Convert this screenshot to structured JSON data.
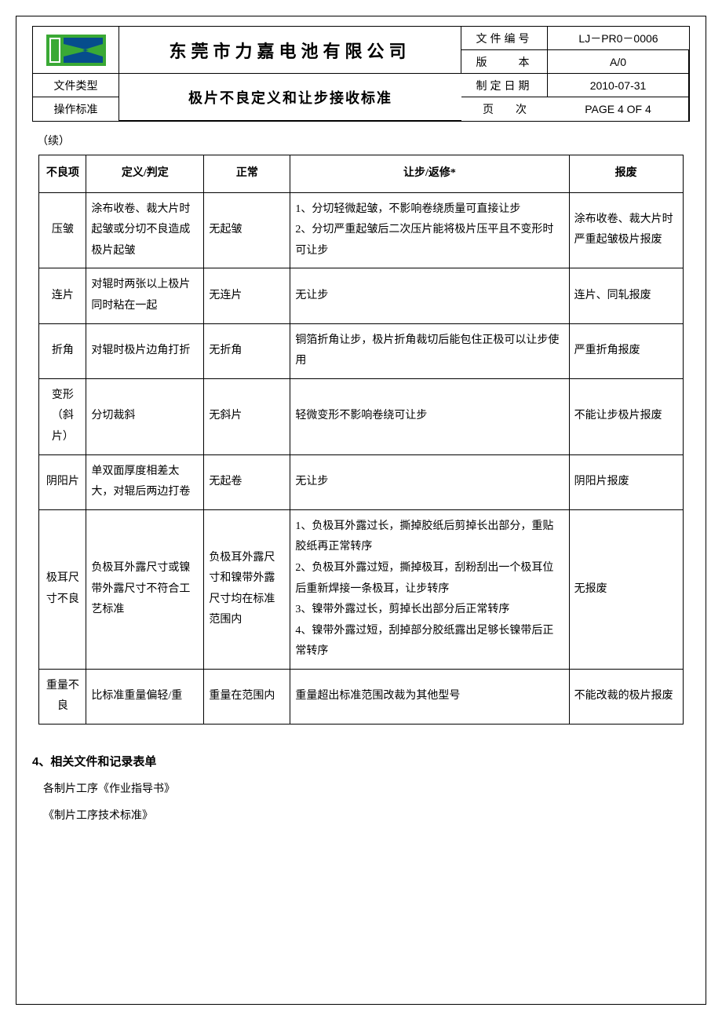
{
  "header": {
    "company": "东莞市力嘉电池有限公司",
    "subtitle": "极片不良定义和让步接收标准",
    "fileTypeLabel": "文件类型",
    "opStdLabel": "操作标准",
    "docNoLabel": "文件编号",
    "docNo": "LJ－PR0－0006",
    "versionLabel": "版　　本",
    "version": "A/0",
    "dateLabel": "制定日期",
    "date": "2010-07-31",
    "pageLabel": "页　　次",
    "page": "PAGE 4 OF 4"
  },
  "continued": "（续）",
  "table": {
    "headers": {
      "item": "不良项",
      "def": "定义/判定",
      "normal": "正常",
      "concession": "让步/返修*",
      "scrap": "报废"
    },
    "rows": [
      {
        "item": "压皱",
        "def": "涂布收卷、裁大片时起皱或分切不良造成极片起皱",
        "normal": "无起皱",
        "concession": "1、分切轻微起皱，不影响卷绕质量可直接让步\n2、分切严重起皱后二次压片能将极片压平且不变形时可让步",
        "scrap": "涂布收卷、裁大片时严重起皱极片报废"
      },
      {
        "item": "连片",
        "def": "对辊时两张以上极片同时粘在一起",
        "normal": "无连片",
        "concession": "无让步",
        "scrap": "连片、同轧报废"
      },
      {
        "item": "折角",
        "def": "对辊时极片边角打折",
        "normal": "无折角",
        "concession": "铜箔折角让步，极片折角裁切后能包住正极可以让步使用",
        "scrap": "严重折角报废"
      },
      {
        "item": "变形\n（斜片）",
        "def": "分切裁斜",
        "normal": "无斜片",
        "concession": "轻微变形不影响卷绕可让步",
        "scrap": "不能让步极片报废"
      },
      {
        "item": "阴阳片",
        "def": "单双面厚度相差太大，对辊后两边打卷",
        "normal": "无起卷",
        "concession": "无让步",
        "scrap": "阴阳片报废"
      },
      {
        "item": "极耳尺寸不良",
        "def": "负极耳外露尺寸或镍带外露尺寸不符合工艺标准",
        "normal": "负极耳外露尺寸和镍带外露尺寸均在标准范围内",
        "concession": "1、负极耳外露过长，撕掉胶纸后剪掉长出部分，重贴胶纸再正常转序\n2、负极耳外露过短，撕掉极耳，刮粉刮出一个极耳位后重新焊接一条极耳，让步转序\n3、镍带外露过长，剪掉长出部分后正常转序\n4、镍带外露过短，刮掉部分胶纸露出足够长镍带后正常转序",
        "scrap": "无报废"
      },
      {
        "item": "重量不良",
        "def": "比标准重量偏轻/重",
        "normal": "重量在范围内",
        "concession": "重量超出标准范围改裁为其他型号",
        "scrap": "不能改裁的极片报废"
      }
    ]
  },
  "section4": {
    "title": "4、相关文件和记录表单",
    "line1": "各制片工序《作业指导书》",
    "line2": "《制片工序技术标准》"
  },
  "colors": {
    "logoGreen": "#3aa935",
    "logoDark": "#064d8c",
    "border": "#000000",
    "background": "#ffffff"
  }
}
